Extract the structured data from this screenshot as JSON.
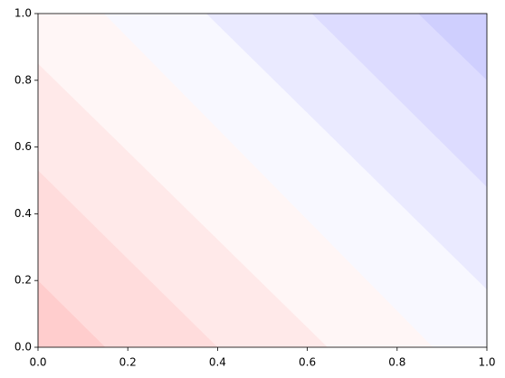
{
  "chart_data": {
    "type": "contourf",
    "xlim": [
      0,
      1
    ],
    "ylim": [
      0,
      1
    ],
    "xticks": [
      {
        "value": 0,
        "label": "0.0"
      },
      {
        "value": 0.2,
        "label": "0.2"
      },
      {
        "value": 0.4,
        "label": "0.4"
      },
      {
        "value": 0.6,
        "label": "0.6"
      },
      {
        "value": 0.8,
        "label": "0.8"
      },
      {
        "value": 1,
        "label": "1.0"
      }
    ],
    "yticks": [
      {
        "value": 0,
        "label": "0.0"
      },
      {
        "value": 0.2,
        "label": "0.2"
      },
      {
        "value": 0.4,
        "label": "0.4"
      },
      {
        "value": 0.6,
        "label": "0.6"
      },
      {
        "value": 0.8,
        "label": "0.8"
      },
      {
        "value": 1,
        "label": "1.0"
      }
    ],
    "colors": [
      "#ffcdcd",
      "#ffdcdc",
      "#ffe9e9",
      "#fff6f6",
      "#f8f8ff",
      "#eaeaff",
      "#dddcff",
      "#cfcffe"
    ],
    "boundaries": [
      {
        "x": [
          0,
          0.15
        ],
        "y": [
          0.2,
          0
        ]
      },
      {
        "x": [
          0,
          0.4
        ],
        "y": [
          0.53,
          0
        ]
      },
      {
        "x": [
          0,
          0.645
        ],
        "y": [
          0.85,
          0
        ]
      },
      {
        "x": [
          0.147,
          0.88
        ],
        "y": [
          1,
          0
        ]
      },
      {
        "x": [
          0.375,
          1
        ],
        "y": [
          1,
          0.173
        ]
      },
      {
        "x": [
          0.61,
          1
        ],
        "y": [
          1,
          0.48
        ]
      },
      {
        "x": [
          0.847,
          1
        ],
        "y": [
          1,
          0.8
        ]
      }
    ]
  }
}
